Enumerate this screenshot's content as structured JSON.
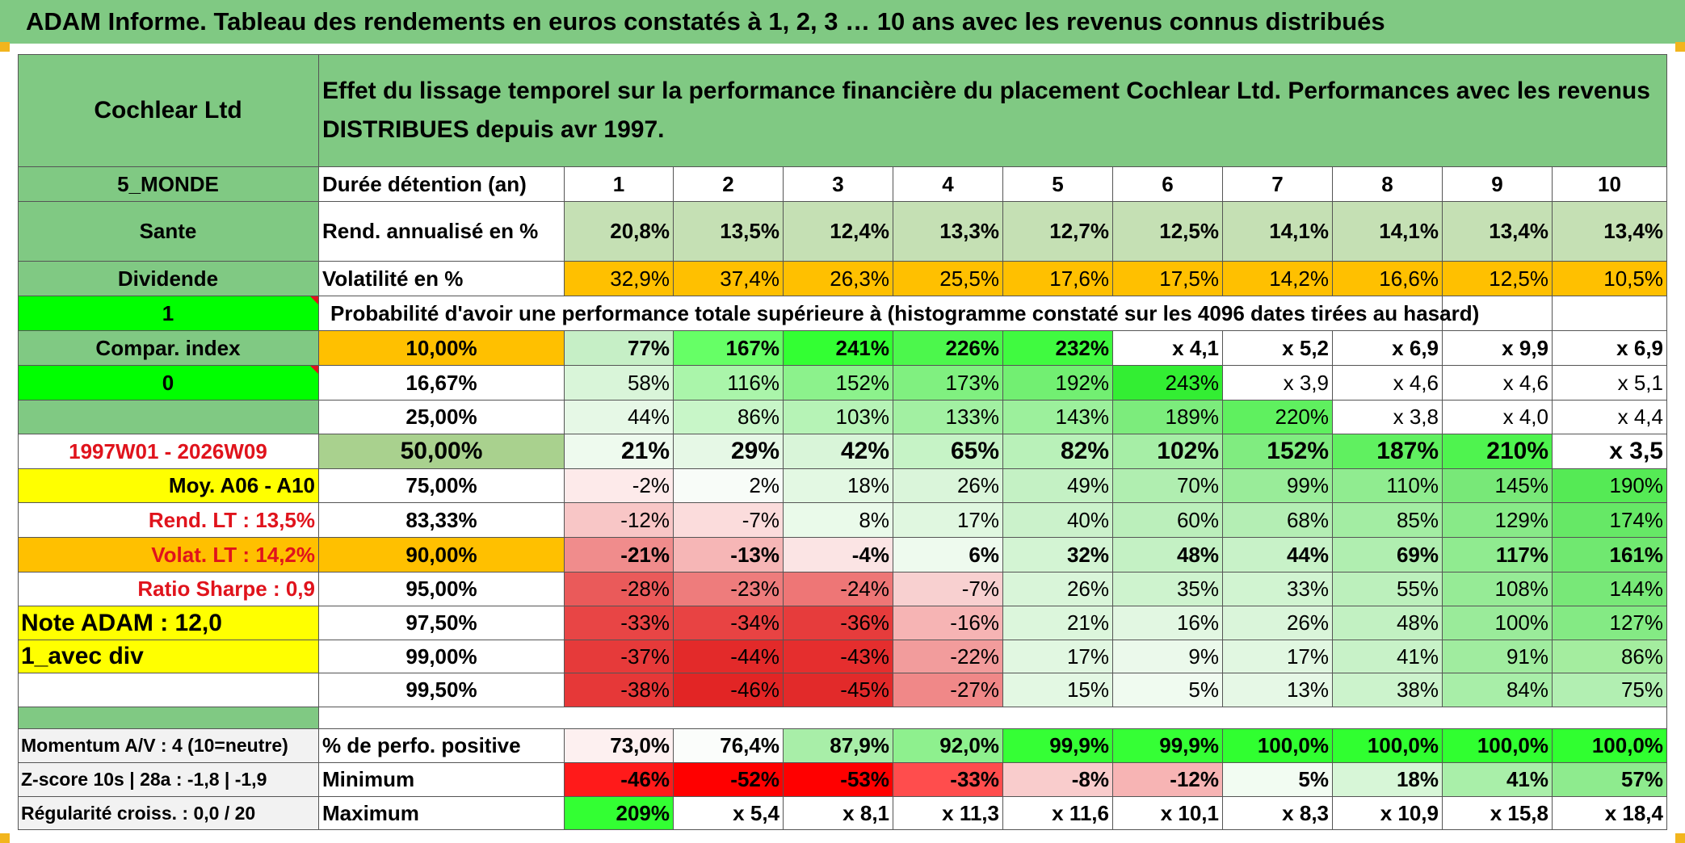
{
  "title": "ADAM Informe. Tableau des rendements en euros constatés à 1, 2, 3 … 10 ans avec les revenus connus distribués",
  "colors": {
    "header_green": "#80c983",
    "light_green": "#c5e0b4",
    "orange": "#ffc000",
    "bright_green": "#00ff00",
    "yellow": "#ffff00",
    "red_text": "#e0131c",
    "gray": "#f2f2f2"
  },
  "left": {
    "asset_name": "Cochlear Ltd",
    "region": "5_MONDE",
    "sector": "Sante",
    "income_type": "Dividende",
    "flag_1": "1",
    "compar_index": "Compar. index",
    "flag_0": "0",
    "period": "1997W01 - 2026W09",
    "moy": "Moy. A06 - A10",
    "rend_lt": "Rend. LT :   13,5%",
    "volat_lt": "Volat. LT :   14,2%",
    "sharpe": "Ratio Sharpe :    0,9",
    "note": "Note ADAM : 12,0",
    "avec_div": "1_avec div",
    "momentum": "Momentum A/V : 4 (10=neutre)",
    "zscore": "Z-score 10s | 28a : -1,8 | -1,9",
    "regularite": "Régularité croiss. : 0,0 / 20"
  },
  "header": {
    "description": "Effet du lissage temporel sur la performance financière du placement Cochlear Ltd. Performances avec les revenus DISTRIBUES depuis avr 1997.",
    "duration_label": "Durée détention (an)",
    "years": [
      "1",
      "2",
      "3",
      "4",
      "5",
      "6",
      "7",
      "8",
      "9",
      "10"
    ],
    "rend_label": "Rend. annualisé en %",
    "rend": [
      "20,8%",
      "13,5%",
      "12,4%",
      "13,3%",
      "12,7%",
      "12,5%",
      "14,1%",
      "14,1%",
      "13,4%",
      "13,4%"
    ],
    "vol_label": "Volatilité en %",
    "vol": [
      "32,9%",
      "37,4%",
      "26,3%",
      "25,5%",
      "17,6%",
      "17,5%",
      "14,2%",
      "16,6%",
      "12,5%",
      "10,5%"
    ],
    "prob_label": "Probabilité d'avoir une performance totale supérieure à (histogramme constaté sur les 4096 dates tirées au hasard)"
  },
  "quantiles": [
    {
      "label": "10,00%",
      "values": [
        "77%",
        "167%",
        "241%",
        "226%",
        "232%",
        "x 4,1",
        "x 5,2",
        "x 6,9",
        "x 9,9",
        "x 6,9"
      ]
    },
    {
      "label": "16,67%",
      "values": [
        "58%",
        "116%",
        "152%",
        "173%",
        "192%",
        "243%",
        "x 3,9",
        "x 4,6",
        "x 4,6",
        "x 5,1"
      ]
    },
    {
      "label": "25,00%",
      "values": [
        "44%",
        "86%",
        "103%",
        "133%",
        "143%",
        "189%",
        "220%",
        "x 3,8",
        "x 4,0",
        "x 4,4"
      ]
    },
    {
      "label": "50,00%",
      "values": [
        "21%",
        "29%",
        "42%",
        "65%",
        "82%",
        "102%",
        "152%",
        "187%",
        "210%",
        "x 3,5"
      ]
    },
    {
      "label": "75,00%",
      "values": [
        "-2%",
        "2%",
        "18%",
        "26%",
        "49%",
        "70%",
        "99%",
        "110%",
        "145%",
        "190%"
      ]
    },
    {
      "label": "83,33%",
      "values": [
        "-12%",
        "-7%",
        "8%",
        "17%",
        "40%",
        "60%",
        "68%",
        "85%",
        "129%",
        "174%"
      ]
    },
    {
      "label": "90,00%",
      "values": [
        "-21%",
        "-13%",
        "-4%",
        "6%",
        "32%",
        "48%",
        "44%",
        "69%",
        "117%",
        "161%"
      ]
    },
    {
      "label": "95,00%",
      "values": [
        "-28%",
        "-23%",
        "-24%",
        "-7%",
        "26%",
        "35%",
        "33%",
        "55%",
        "108%",
        "144%"
      ]
    },
    {
      "label": "97,50%",
      "values": [
        "-33%",
        "-34%",
        "-36%",
        "-16%",
        "21%",
        "16%",
        "26%",
        "48%",
        "100%",
        "127%"
      ]
    },
    {
      "label": "99,00%",
      "values": [
        "-37%",
        "-44%",
        "-43%",
        "-22%",
        "17%",
        "9%",
        "17%",
        "41%",
        "91%",
        "86%"
      ]
    },
    {
      "label": "99,50%",
      "values": [
        "-38%",
        "-46%",
        "-45%",
        "-27%",
        "15%",
        "5%",
        "13%",
        "38%",
        "84%",
        "75%"
      ]
    }
  ],
  "bottom": {
    "pos_label": "% de perfo. positive",
    "pos": [
      "73,0%",
      "76,4%",
      "87,9%",
      "92,0%",
      "99,9%",
      "99,9%",
      "100,0%",
      "100,0%",
      "100,0%",
      "100,0%"
    ],
    "min_label": "Minimum",
    "min": [
      "-46%",
      "-52%",
      "-53%",
      "-33%",
      "-8%",
      "-12%",
      "5%",
      "18%",
      "41%",
      "57%"
    ],
    "max_label": "Maximum",
    "max": [
      "209%",
      "x 5,4",
      "x 8,1",
      "x 11,3",
      "x 11,6",
      "x 10,1",
      "x 8,3",
      "x 10,9",
      "x 15,8",
      "x 18,4"
    ]
  },
  "cell_colors": {
    "quantiles": [
      [
        "#c6efc6",
        "#66ff66",
        "#33ff33",
        "#4cf74c",
        "#40fa40",
        "#ffffff",
        "#ffffff",
        "#ffffff",
        "#ffffff",
        "#ffffff"
      ],
      [
        "#d9f5d9",
        "#aaf5aa",
        "#8cf28c",
        "#80f080",
        "#72ef72",
        "#33ee33",
        "#ffffff",
        "#ffffff",
        "#ffffff",
        "#ffffff"
      ],
      [
        "#e6f8e6",
        "#c8f6c8",
        "#b6f3b6",
        "#a2f0a2",
        "#9cf09c",
        "#7cec7c",
        "#5ff05f",
        "#ffffff",
        "#ffffff",
        "#ffffff"
      ],
      [
        "#eefaee",
        "#e6f8e6",
        "#d9f5d9",
        "#c6f3c6",
        "#b9f1b9",
        "#a6eea6",
        "#80ec80",
        "#60f060",
        "#4ff34f",
        "#ffffff"
      ],
      [
        "#fdeaea",
        "#f8fcf8",
        "#e3f8e3",
        "#daf5da",
        "#c4f1c4",
        "#b0eeb0",
        "#99ec99",
        "#90ec90",
        "#78e878",
        "#55ea55"
      ],
      [
        "#f8c6c6",
        "#fbdcdc",
        "#eafaea",
        "#e0f7e0",
        "#cbf2cb",
        "#bbefbb",
        "#b4eeb4",
        "#a3eda3",
        "#88ea88",
        "#66e866"
      ],
      [
        "#f08c8c",
        "#f6b6b6",
        "#fbe4e4",
        "#eefaee",
        "#d3f4d3",
        "#c4f1c4",
        "#c8f2c8",
        "#b0eeb0",
        "#90eb90",
        "#70e870"
      ],
      [
        "#ea5a5a",
        "#ee7c7c",
        "#ee7676",
        "#f8d0d0",
        "#d9f5d9",
        "#cef3ce",
        "#d1f4d1",
        "#bcf0bc",
        "#96eb96",
        "#78e878"
      ],
      [
        "#e84545",
        "#e84343",
        "#e63c3c",
        "#f6b4b4",
        "#dcf6dc",
        "#e2f7e2",
        "#daf5da",
        "#c2f1c2",
        "#9aeb9a",
        "#84ea84"
      ],
      [
        "#e63a3a",
        "#e32a2a",
        "#e52e2e",
        "#f29c9c",
        "#e1f7e1",
        "#ebf9eb",
        "#e1f7e1",
        "#c8f2c8",
        "#a0ec9f",
        "#a4ed9f"
      ],
      [
        "#e63838",
        "#e22525",
        "#e22a2a",
        "#f08888",
        "#e3f8e3",
        "#f0fbf0",
        "#e6f8e6",
        "#ccf3cc",
        "#a8eea8",
        "#b2efb2"
      ]
    ],
    "pos": [
      "#fdf0f0",
      "#fbfdfb",
      "#a8eea8",
      "#8ef08e",
      "#35ff35",
      "#35ff35",
      "#30ff30",
      "#30ff30",
      "#30ff30",
      "#30ff30"
    ],
    "min": [
      "#ff1a1a",
      "#ff0000",
      "#ff0000",
      "#ff4d4d",
      "#f9cccc",
      "#f7b4b4",
      "#f2fcf2",
      "#d7f6d7",
      "#a9efa9",
      "#8eeb8e"
    ],
    "max": [
      "#33ff33",
      "#ffffff",
      "#ffffff",
      "#ffffff",
      "#ffffff",
      "#ffffff",
      "#ffffff",
      "#ffffff",
      "#ffffff",
      "#ffffff"
    ],
    "quantile_label": [
      "#ffc000",
      "#ffffff",
      "#ffffff",
      "#a9d18e",
      "#ffffff",
      "#ffffff",
      "#ffc000",
      "#ffffff",
      "#ffffff",
      "#ffffff",
      "#ffffff"
    ]
  }
}
